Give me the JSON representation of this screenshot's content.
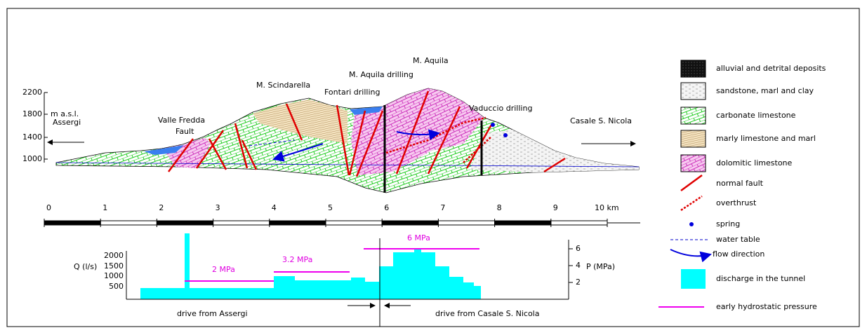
{
  "section": {
    "elevation_unit": "m a.s.l.",
    "elevation_ticks": [
      "2200",
      "1800",
      "1400",
      "1000"
    ],
    "labels": {
      "assergi": "Assergi",
      "valle_fredda": "Valle Fredda",
      "fault": "Fault",
      "scindarella": "M. Scindarella",
      "fontari": "Fontari drilling",
      "aquila_drilling": "M. Aquila drilling",
      "aquila": "M. Aquila",
      "vaduccio": "Vaduccio drilling",
      "casale": "Casale S. Nicola"
    }
  },
  "scale": [
    "0",
    "1",
    "2",
    "3",
    "4",
    "5",
    "6",
    "7",
    "8",
    "9",
    "10 km"
  ],
  "discharge": {
    "q_label": "Q (l/s)",
    "q_ticks": [
      "2000",
      "1500",
      "1000",
      "500"
    ],
    "p_label": "P (MPa)",
    "p_ticks": [
      "6",
      "4",
      "2"
    ],
    "pressure_labels": [
      "2 MPa",
      "3.2 MPa",
      "6 MPa"
    ],
    "drive_left": "drive from Assergi",
    "drive_right": "drive from Casale S. Nicola"
  },
  "legend": [
    "alluvial  and detrital deposits",
    "sandstone, marl and clay",
    "carbonate limestone",
    "marly limestone and marl",
    "dolomitic limestone",
    "normal fault",
    "overthrust",
    "spring",
    "water table",
    "flow direction",
    "discharge in the tunnel",
    "early hydrostatic pressure"
  ]
}
